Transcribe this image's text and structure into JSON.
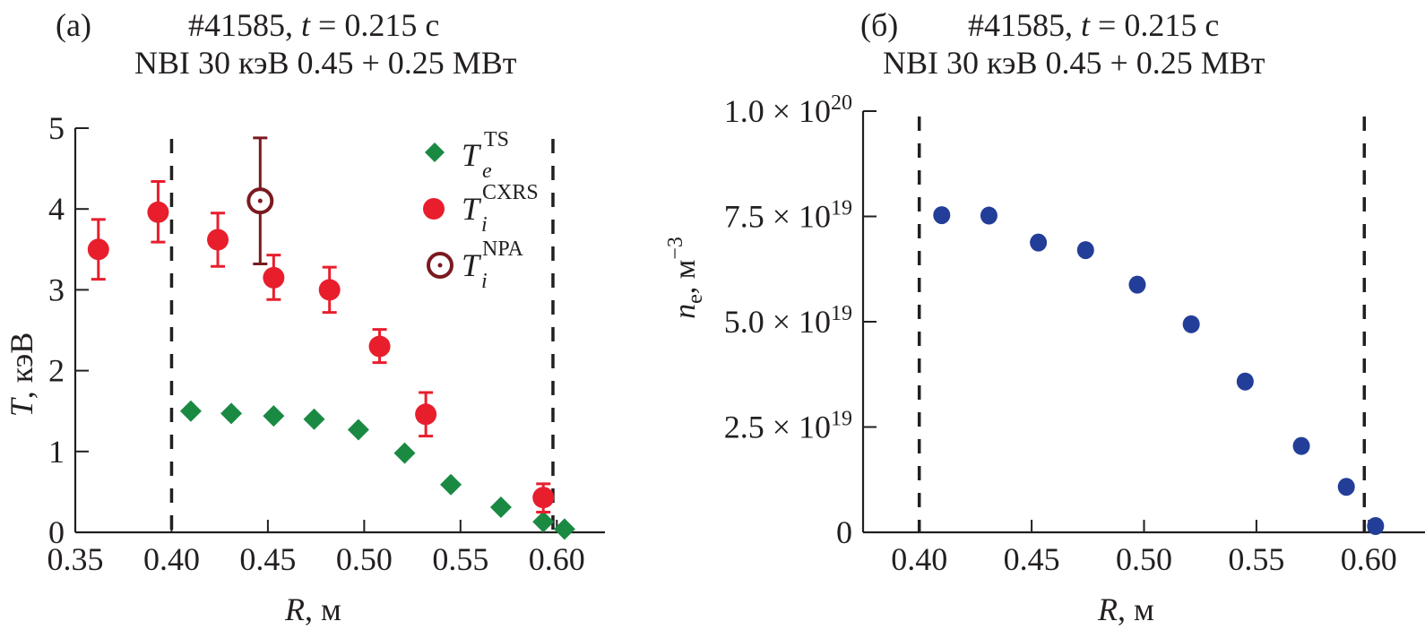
{
  "chart_data": [
    {
      "panel": "a",
      "type": "scatter",
      "panel_label": "(a)",
      "title": {
        "shot": "#41585, ",
        "t_var": "t",
        "t_value": " = 0.215 с",
        "subtitle": "NBI 30 кэВ 0.45 + 0.25 МВт"
      },
      "xlabel": {
        "var": "R",
        "unit": ", м"
      },
      "ylabel": {
        "var": "T",
        "unit": ", кэВ"
      },
      "xlim": [
        0.35,
        0.625
      ],
      "ylim": [
        0,
        5
      ],
      "xticks": [
        0.35,
        0.4,
        0.45,
        0.5,
        0.55,
        0.6
      ],
      "xtick_labels": [
        "0.35",
        "0.40",
        "0.45",
        "0.50",
        "0.55",
        "0.60"
      ],
      "yticks": [
        0,
        1,
        2,
        3,
        4,
        5
      ],
      "ytick_labels": [
        "0",
        "1",
        "2",
        "3",
        "4",
        "5"
      ],
      "vlines": [
        0.4,
        0.598
      ],
      "grid": false,
      "legend_position": "top-right",
      "series": [
        {
          "name": "Te_TS",
          "legend": {
            "base": "T",
            "sub": "e",
            "sup": "TS"
          },
          "marker": "diamond",
          "color": "#1a8a43",
          "x": [
            0.41,
            0.431,
            0.453,
            0.474,
            0.497,
            0.521,
            0.545,
            0.571,
            0.593,
            0.604
          ],
          "y": [
            1.5,
            1.47,
            1.44,
            1.4,
            1.27,
            0.98,
            0.59,
            0.31,
            0.13,
            0.04
          ]
        },
        {
          "name": "Ti_CXRS",
          "legend": {
            "base": "T",
            "sub": "i",
            "sup": "CXRS"
          },
          "marker": "circle",
          "color": "#e81e2d",
          "x": [
            0.362,
            0.393,
            0.424,
            0.453,
            0.482,
            0.508,
            0.532,
            0.593
          ],
          "y": [
            3.5,
            3.96,
            3.62,
            3.15,
            3.0,
            2.3,
            1.46,
            0.43
          ],
          "err_low": [
            0.37,
            0.37,
            0.33,
            0.27,
            0.28,
            0.2,
            0.27,
            0.18
          ],
          "err_high": [
            0.37,
            0.38,
            0.33,
            0.28,
            0.28,
            0.21,
            0.27,
            0.17
          ]
        },
        {
          "name": "Ti_NPA",
          "legend": {
            "base": "T",
            "sub": "i",
            "sup": "NPA"
          },
          "marker": "circle-dot",
          "color": "#7a1a1f",
          "x": [
            0.446
          ],
          "y": [
            4.1
          ],
          "err_low": [
            0.78
          ],
          "err_high": [
            0.78
          ]
        }
      ]
    },
    {
      "panel": "b",
      "type": "scatter",
      "panel_label": "(б)",
      "title": {
        "shot": "#41585, ",
        "t_var": "t",
        "t_value": " = 0.215 с",
        "subtitle": "NBI 30 кэВ 0.45 + 0.25 МВт"
      },
      "xlabel": {
        "var": "R",
        "unit": ", м"
      },
      "ylabel": {
        "var": "n",
        "sub": "e",
        "unit": ", м",
        "sup": "−3"
      },
      "xlim": [
        0.375,
        0.625
      ],
      "ylim": [
        0,
        1e+20
      ],
      "xticks": [
        0.4,
        0.45,
        0.5,
        0.55,
        0.6
      ],
      "xtick_labels": [
        "0.40",
        "0.45",
        "0.50",
        "0.55",
        "0.60"
      ],
      "yticks": [
        0,
        2.5e+19,
        5e+19,
        7.5e+19,
        1e+20
      ],
      "ytick_labels": [
        {
          "mant": "0",
          "exp": ""
        },
        {
          "mant": "2.5 × 10",
          "exp": "19"
        },
        {
          "mant": "5.0 × 10",
          "exp": "19"
        },
        {
          "mant": "7.5 × 10",
          "exp": "19"
        },
        {
          "mant": "1.0 × 10",
          "exp": "20"
        }
      ],
      "vlines": [
        0.4,
        0.598
      ],
      "grid": false,
      "series": [
        {
          "name": "ne",
          "marker": "circle",
          "color": "#233e99",
          "x": [
            0.41,
            0.431,
            0.453,
            0.474,
            0.497,
            0.521,
            0.545,
            0.57,
            0.59,
            0.603
          ],
          "y": [
            7.53e+19,
            7.52e+19,
            6.88e+19,
            6.7e+19,
            5.88e+19,
            4.94e+19,
            3.58e+19,
            2.05e+19,
            1.08e+19,
            1.5e+18
          ]
        }
      ]
    }
  ]
}
